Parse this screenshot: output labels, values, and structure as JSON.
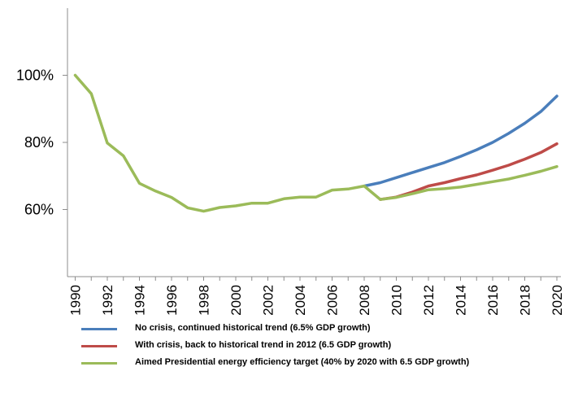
{
  "chart_data": {
    "type": "line",
    "title": "",
    "xlabel": "",
    "ylabel": "",
    "xlim": [
      1990,
      2020
    ],
    "ylim": [
      40,
      120
    ],
    "grid": false,
    "legend_position": "bottom",
    "y_ticks": [
      "60%",
      "80%",
      "100%"
    ],
    "y_tick_values": [
      60,
      80,
      100
    ],
    "x_ticks": [
      "1990",
      "1992",
      "1994",
      "1996",
      "1998",
      "2000",
      "2002",
      "2004",
      "2006",
      "2008",
      "2010",
      "2012",
      "2014",
      "2016",
      "2018",
      "2020"
    ],
    "series": [
      {
        "name": "No crisis, continued historical trend (6.5% GDP growth)",
        "color": "#4A7EBB",
        "x": [
          2008,
          2009,
          2010,
          2011,
          2012,
          2013,
          2014,
          2015,
          2016,
          2017,
          2018,
          2019,
          2020
        ],
        "values": [
          67,
          68,
          69.5,
          71,
          72.5,
          74,
          75.8,
          77.8,
          80,
          82.7,
          85.7,
          89.2,
          93.8
        ]
      },
      {
        "name": "With crisis, back to historical trend in 2012 (6.5 GDP growth)",
        "color": "#BE4B48",
        "x": [
          2009,
          2010,
          2011,
          2012,
          2013,
          2014,
          2015,
          2016,
          2017,
          2018,
          2019,
          2020
        ],
        "values": [
          63,
          63.7,
          65.2,
          67,
          68,
          69.2,
          70.3,
          71.7,
          73.2,
          75,
          77,
          79.6
        ]
      },
      {
        "name": "Aimed Presidential energy efficiency target (40% by 2020 with 6.5 GDP growth)",
        "color": "#9BBB59",
        "x": [
          1990,
          1991,
          1992,
          1993,
          1994,
          1995,
          1996,
          1997,
          1998,
          1999,
          2000,
          2001,
          2002,
          2003,
          2004,
          2005,
          2006,
          2007,
          2008,
          2009,
          2010,
          2011,
          2012,
          2013,
          2014,
          2015,
          2016,
          2017,
          2018,
          2019,
          2020
        ],
        "values": [
          100,
          94.5,
          79.8,
          76,
          67.8,
          65.5,
          63.6,
          60.5,
          59.5,
          60.6,
          61.1,
          61.9,
          61.9,
          63.2,
          63.7,
          63.7,
          65.8,
          66.1,
          67,
          63,
          63.6,
          64.7,
          65.9,
          66.2,
          66.7,
          67.5,
          68.3,
          69.1,
          70.2,
          71.4,
          72.8
        ]
      }
    ]
  }
}
